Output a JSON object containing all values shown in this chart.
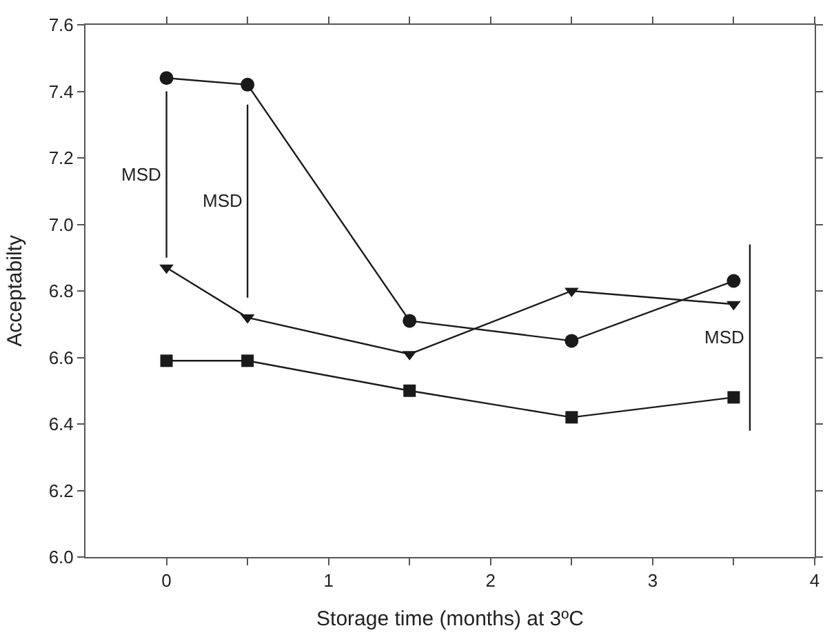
{
  "chart_data": {
    "type": "line",
    "xlabel": "Storage time (months) at 3ºC",
    "ylabel": "Acceptabilty",
    "xlim": [
      -0.5,
      4
    ],
    "xticks": [
      0,
      {
        "value": 0.5,
        "label": null
      },
      1,
      {
        "value": 1.5,
        "label": null
      },
      2,
      {
        "value": 2.5,
        "label": null
      },
      3,
      {
        "value": 3.5,
        "label": null
      },
      4
    ],
    "ylim": [
      6.0,
      7.6
    ],
    "yticks": [
      {
        "value": 6,
        "label": "6.0"
      },
      6.2,
      6.4,
      6.6,
      6.8,
      {
        "value": 7,
        "label": "7.0"
      },
      7.2,
      7.4,
      7.6
    ],
    "legend": false,
    "line_style": "solid",
    "series": [
      {
        "color": "#1a1a1a",
        "marker": "circle",
        "x": [
          0,
          0.5,
          1.5,
          2.5,
          3.5
        ],
        "values": [
          7.44,
          7.42,
          6.71,
          6.65,
          6.83
        ]
      },
      {
        "color": "#1a1a1a",
        "marker": "triangle",
        "x": [
          0,
          0.5,
          1.5,
          2.5,
          3.5
        ],
        "values": [
          6.87,
          6.72,
          6.61,
          6.8,
          6.76
        ]
      },
      {
        "color": "#1a1a1a",
        "marker": "square",
        "x": [
          0,
          0.5,
          1.5,
          2.5,
          3.5
        ],
        "values": [
          6.59,
          6.59,
          6.5,
          6.42,
          6.48
        ]
      },
      {
        "name": "MSD",
        "color": "#1a1a1a",
        "marker": "none",
        "x": [
          0,
          0
        ],
        "values": [
          7.4,
          6.9
        ]
      },
      {
        "name": "MSD",
        "color": "#1a1a1a",
        "marker": "none",
        "x": [
          0.5,
          0.5
        ],
        "values": [
          7.36,
          6.78
        ]
      },
      {
        "name": "MSD",
        "color": "#1a1a1a",
        "marker": "none",
        "x": [
          3.6,
          3.6
        ],
        "values": [
          6.94,
          6.38
        ]
      }
    ]
  }
}
